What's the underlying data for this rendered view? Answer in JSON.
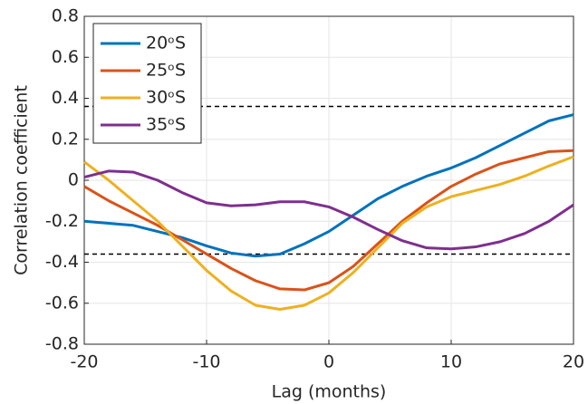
{
  "chart_data": {
    "type": "line",
    "xlabel": "Lag (months)",
    "ylabel": "Correlation coefficient",
    "x": [
      -20,
      -18,
      -16,
      -14,
      -12,
      -10,
      -8,
      -6,
      -4,
      -2,
      0,
      2,
      4,
      6,
      8,
      10,
      12,
      14,
      16,
      18,
      20
    ],
    "series": [
      {
        "name": "20ᵒS",
        "color": "#0072bd",
        "values": [
          -0.2,
          -0.21,
          -0.22,
          -0.25,
          -0.28,
          -0.32,
          -0.355,
          -0.37,
          -0.36,
          -0.31,
          -0.25,
          -0.17,
          -0.09,
          -0.03,
          0.02,
          0.06,
          0.11,
          0.17,
          0.23,
          0.29,
          0.32
        ]
      },
      {
        "name": "25ᵒS",
        "color": "#d95319",
        "values": [
          -0.03,
          -0.1,
          -0.16,
          -0.22,
          -0.29,
          -0.36,
          -0.43,
          -0.49,
          -0.53,
          -0.535,
          -0.5,
          -0.42,
          -0.31,
          -0.2,
          -0.11,
          -0.03,
          0.03,
          0.08,
          0.11,
          0.14,
          0.145
        ]
      },
      {
        "name": "30ᵒS",
        "color": "#edb120",
        "values": [
          0.09,
          0.0,
          -0.1,
          -0.2,
          -0.32,
          -0.44,
          -0.54,
          -0.61,
          -0.63,
          -0.61,
          -0.55,
          -0.45,
          -0.33,
          -0.21,
          -0.13,
          -0.08,
          -0.05,
          -0.02,
          0.02,
          0.07,
          0.115
        ]
      },
      {
        "name": "35ᵒS",
        "color": "#7e2f8e",
        "values": [
          0.015,
          0.045,
          0.04,
          0.0,
          -0.06,
          -0.11,
          -0.125,
          -0.12,
          -0.105,
          -0.105,
          -0.13,
          -0.18,
          -0.24,
          -0.295,
          -0.33,
          -0.335,
          -0.325,
          -0.3,
          -0.26,
          -0.2,
          -0.12
        ]
      }
    ],
    "reference_lines": [
      0.36,
      -0.36
    ],
    "xlim": [
      -20,
      20
    ],
    "xticks": [
      -20,
      -10,
      0,
      10,
      20
    ],
    "ylim": [
      -0.8,
      0.8
    ],
    "yticks": [
      -0.8,
      -0.6,
      -0.4,
      -0.2,
      0,
      0.2,
      0.4,
      0.6,
      0.8
    ],
    "grid": true,
    "legend": "upper left"
  }
}
